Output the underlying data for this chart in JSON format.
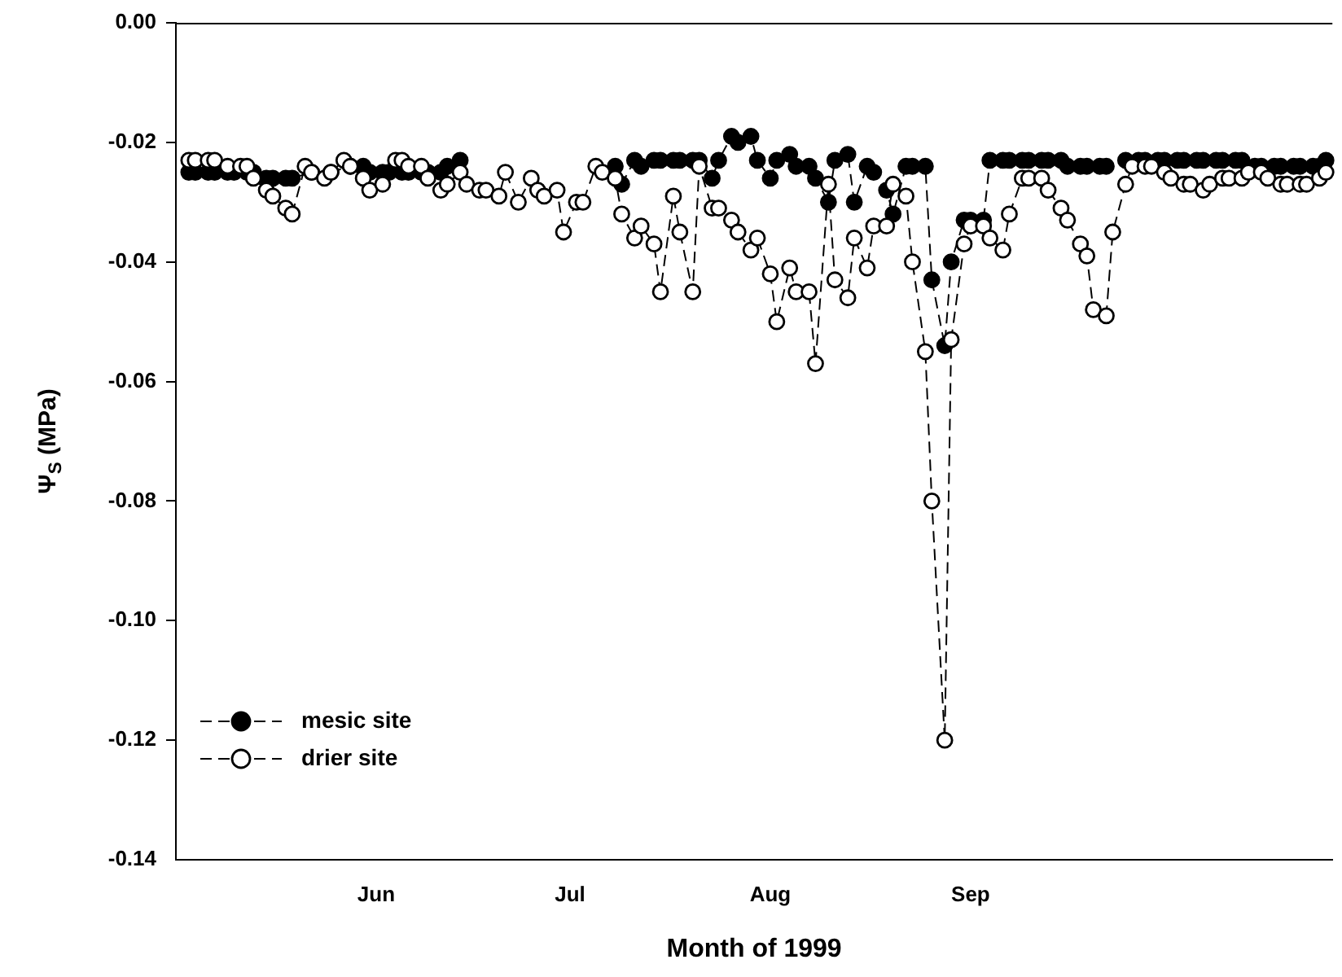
{
  "chart_data": {
    "type": "line",
    "xlabel": "Month of 1999",
    "ylabel": "Ψ$_{S}$ (MPa)",
    "xlim": [
      "1999-05-15",
      "1999-11-10"
    ],
    "xticks": [
      {
        "value": "1999-06-15",
        "label": "Jun"
      },
      {
        "value": "1999-07-15",
        "label": "Jul"
      },
      {
        "value": "1999-08-15",
        "label": "Aug"
      },
      {
        "value": "1999-09-15",
        "label": "Sep"
      }
    ],
    "ylim": [
      -0.14,
      0
    ],
    "yticks": [
      {
        "value": -0.14,
        "label": "-0.14"
      },
      {
        "value": -0.12,
        "label": "-0.12"
      },
      {
        "value": -0.1,
        "label": "-0.10"
      },
      {
        "value": -0.08,
        "label": "-0.08"
      },
      {
        "value": -0.06,
        "label": "-0.06"
      },
      {
        "value": -0.04,
        "label": "-0.04"
      },
      {
        "value": -0.02,
        "label": "-0.02"
      },
      {
        "value": 0,
        "label": "0.00"
      }
    ],
    "grid": false,
    "legend": "bottom left",
    "marker": "circle",
    "line_style": "dashed",
    "series": [
      {
        "name": "mesic site",
        "color": "#000000",
        "x": [
          "1999-05-17",
          "1999-05-18",
          "1999-05-20",
          "1999-05-21",
          "1999-05-23",
          "1999-05-24",
          "1999-05-26",
          "1999-05-27",
          "1999-05-29",
          "1999-05-30",
          "1999-06-01",
          "1999-06-02",
          "1999-06-05",
          "1999-06-08",
          "1999-06-11",
          "1999-06-13",
          "1999-06-14",
          "1999-06-16",
          "1999-06-17",
          "1999-06-19",
          "1999-06-20",
          "1999-06-22",
          "1999-06-23",
          "1999-06-25",
          "1999-06-26",
          "1999-06-28",
          "1999-07-09",
          "1999-07-22",
          "1999-07-23",
          "1999-07-25",
          "1999-07-26",
          "1999-07-28",
          "1999-07-29",
          "1999-07-31",
          "1999-08-01",
          "1999-08-03",
          "1999-08-04",
          "1999-08-06",
          "1999-08-07",
          "1999-08-09",
          "1999-08-10",
          "1999-08-12",
          "1999-08-13",
          "1999-08-15",
          "1999-08-16",
          "1999-08-18",
          "1999-08-19",
          "1999-08-21",
          "1999-08-22",
          "1999-08-24",
          "1999-08-25",
          "1999-08-27",
          "1999-08-28",
          "1999-08-30",
          "1999-08-31",
          "1999-09-02",
          "1999-09-03",
          "1999-09-05",
          "1999-09-06",
          "1999-09-08",
          "1999-09-09",
          "1999-09-11",
          "1999-09-12",
          "1999-09-14",
          "1999-09-15",
          "1999-09-17",
          "1999-09-18",
          "1999-09-20",
          "1999-09-21",
          "1999-09-23",
          "1999-09-24",
          "1999-09-26",
          "1999-09-27",
          "1999-09-29",
          "1999-09-30",
          "1999-10-02",
          "1999-10-03",
          "1999-10-05",
          "1999-10-06",
          "1999-10-08",
          "1999-10-09",
          "1999-10-11",
          "1999-10-12",
          "1999-10-14",
          "1999-10-15",
          "1999-10-17",
          "1999-10-18",
          "1999-10-20",
          "1999-10-21",
          "1999-10-23",
          "1999-10-24",
          "1999-10-26",
          "1999-10-27",
          "1999-10-29",
          "1999-10-30",
          "1999-11-01",
          "1999-11-02",
          "1999-11-04",
          "1999-11-05",
          "1999-11-07",
          "1999-11-08",
          "1999-11-09"
        ],
        "values": [
          -0.025,
          -0.025,
          -0.025,
          -0.025,
          -0.025,
          -0.025,
          -0.025,
          -0.025,
          -0.026,
          -0.026,
          -0.026,
          -0.026,
          -0.025,
          -0.025,
          -0.024,
          -0.024,
          -0.025,
          -0.025,
          -0.025,
          -0.025,
          -0.025,
          -0.025,
          -0.025,
          -0.025,
          -0.024,
          -0.023,
          null,
          -0.024,
          -0.027,
          -0.023,
          -0.024,
          -0.023,
          -0.023,
          -0.023,
          -0.023,
          -0.023,
          -0.023,
          -0.026,
          -0.023,
          -0.019,
          -0.02,
          -0.019,
          -0.023,
          -0.026,
          -0.023,
          -0.022,
          -0.024,
          -0.024,
          -0.026,
          -0.03,
          -0.023,
          -0.022,
          -0.03,
          -0.024,
          -0.025,
          -0.028,
          -0.032,
          -0.024,
          -0.024,
          -0.024,
          -0.043,
          -0.054,
          -0.04,
          -0.033,
          -0.033,
          -0.033,
          -0.023,
          -0.023,
          -0.023,
          -0.023,
          -0.023,
          -0.023,
          -0.023,
          -0.023,
          -0.024,
          -0.024,
          -0.024,
          -0.024,
          -0.024,
          null,
          -0.023,
          -0.023,
          -0.023,
          -0.023,
          -0.023,
          -0.023,
          -0.023,
          -0.023,
          -0.023,
          -0.023,
          -0.023,
          -0.023,
          -0.023,
          -0.024,
          -0.024,
          -0.024,
          -0.024,
          -0.024,
          -0.024,
          -0.024,
          -0.024,
          -0.023
        ]
      },
      {
        "name": "drier site",
        "color": "#ffffff",
        "x": [
          "1999-05-17",
          "1999-05-18",
          "1999-05-20",
          "1999-05-21",
          "1999-05-23",
          "1999-05-25",
          "1999-05-26",
          "1999-05-27",
          "1999-05-29",
          "1999-05-30",
          "1999-06-01",
          "1999-06-02",
          "1999-06-04",
          "1999-06-05",
          "1999-06-07",
          "1999-06-08",
          "1999-06-10",
          "1999-06-11",
          "1999-06-13",
          "1999-06-14",
          "1999-06-16",
          "1999-06-18",
          "1999-06-19",
          "1999-06-20",
          "1999-06-22",
          "1999-06-23",
          "1999-06-25",
          "1999-06-26",
          "1999-06-28",
          "1999-06-29",
          "1999-07-01",
          "1999-07-02",
          "1999-07-04",
          "1999-07-05",
          "1999-07-07",
          "1999-07-09",
          "1999-07-10",
          "1999-07-11",
          "1999-07-13",
          "1999-07-14",
          "1999-07-16",
          "1999-07-17",
          "1999-07-19",
          "1999-07-20",
          "1999-07-22",
          "1999-07-23",
          "1999-07-25",
          "1999-07-26",
          "1999-07-28",
          "1999-07-29",
          "1999-07-31",
          "1999-08-01",
          "1999-08-03",
          "1999-08-04",
          "1999-08-06",
          "1999-08-07",
          "1999-08-09",
          "1999-08-10",
          "1999-08-12",
          "1999-08-13",
          "1999-08-15",
          "1999-08-16",
          "1999-08-18",
          "1999-08-19",
          "1999-08-21",
          "1999-08-22",
          "1999-08-24",
          "1999-08-25",
          "1999-08-27",
          "1999-08-28",
          "1999-08-30",
          "1999-08-31",
          "1999-09-02",
          "1999-09-03",
          "1999-09-05",
          "1999-09-06",
          "1999-09-08",
          "1999-09-09",
          "1999-09-11",
          "1999-09-12",
          "1999-09-14",
          "1999-09-15",
          "1999-09-17",
          "1999-09-18",
          "1999-09-20",
          "1999-09-21",
          "1999-09-23",
          "1999-09-24",
          "1999-09-26",
          "1999-09-27",
          "1999-09-29",
          "1999-09-30",
          "1999-10-02",
          "1999-10-03",
          "1999-10-04",
          "1999-10-06",
          "1999-10-07",
          "1999-10-09",
          "1999-10-10",
          "1999-10-12",
          "1999-10-13",
          "1999-10-15",
          "1999-10-16",
          "1999-10-18",
          "1999-10-19",
          "1999-10-21",
          "1999-10-22",
          "1999-10-24",
          "1999-10-25",
          "1999-10-27",
          "1999-10-28",
          "1999-10-30",
          "1999-10-31",
          "1999-11-02",
          "1999-11-03",
          "1999-11-05",
          "1999-11-06",
          "1999-11-08",
          "1999-11-09"
        ],
        "values": [
          -0.023,
          -0.023,
          -0.023,
          -0.023,
          -0.024,
          -0.024,
          -0.024,
          -0.026,
          -0.028,
          -0.029,
          -0.031,
          -0.032,
          -0.024,
          -0.025,
          -0.026,
          -0.025,
          -0.023,
          -0.024,
          -0.026,
          -0.028,
          -0.027,
          -0.023,
          -0.023,
          -0.024,
          -0.024,
          -0.026,
          -0.028,
          -0.027,
          -0.025,
          -0.027,
          -0.028,
          -0.028,
          -0.029,
          -0.025,
          -0.03,
          -0.026,
          -0.028,
          -0.029,
          -0.028,
          -0.035,
          -0.03,
          -0.03,
          -0.024,
          -0.025,
          -0.026,
          -0.032,
          -0.036,
          -0.034,
          -0.037,
          -0.045,
          -0.029,
          -0.035,
          -0.045,
          -0.024,
          -0.031,
          -0.031,
          -0.033,
          -0.035,
          -0.038,
          -0.036,
          -0.042,
          -0.05,
          -0.041,
          -0.045,
          -0.045,
          -0.057,
          -0.027,
          -0.043,
          -0.046,
          -0.036,
          -0.041,
          -0.034,
          -0.034,
          -0.027,
          -0.029,
          -0.04,
          -0.055,
          -0.08,
          -0.12,
          -0.053,
          -0.037,
          -0.034,
          -0.034,
          -0.036,
          -0.038,
          -0.032,
          -0.026,
          -0.026,
          -0.026,
          -0.028,
          -0.031,
          -0.033,
          -0.037,
          -0.039,
          -0.048,
          -0.049,
          -0.035,
          -0.027,
          -0.024,
          -0.024,
          -0.024,
          -0.025,
          -0.026,
          -0.027,
          -0.027,
          -0.028,
          -0.027,
          -0.026,
          -0.026,
          -0.026,
          -0.025,
          -0.025,
          -0.026,
          -0.027,
          -0.027,
          -0.027,
          -0.027,
          -0.026,
          -0.025
        ]
      }
    ]
  }
}
